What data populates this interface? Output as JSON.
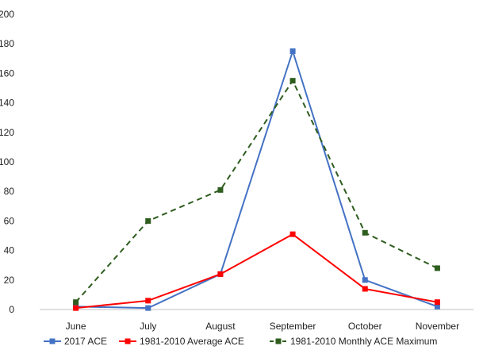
{
  "chart_data": {
    "type": "line",
    "categories": [
      "June",
      "July",
      "August",
      "September",
      "October",
      "November"
    ],
    "yticks": [
      0,
      20,
      40,
      60,
      80,
      100,
      120,
      140,
      160,
      180,
      200
    ],
    "ylim": [
      0,
      200
    ],
    "grid": false,
    "legend_position": "bottom",
    "series": [
      {
        "name": "2017 ACE",
        "color": "#4472c4",
        "dash": "solid",
        "values": [
          2,
          1,
          24,
          175,
          20,
          2
        ]
      },
      {
        "name": "1981-2010 Average ACE",
        "color": "#ff0000",
        "dash": "solid",
        "values": [
          1,
          6,
          24,
          51,
          14,
          5
        ]
      },
      {
        "name": "1981-2010 Monthly ACE Maximum",
        "color": "#2e5d1e",
        "dash": "dashed",
        "values": [
          5,
          60,
          81,
          155,
          52,
          28
        ]
      }
    ]
  }
}
